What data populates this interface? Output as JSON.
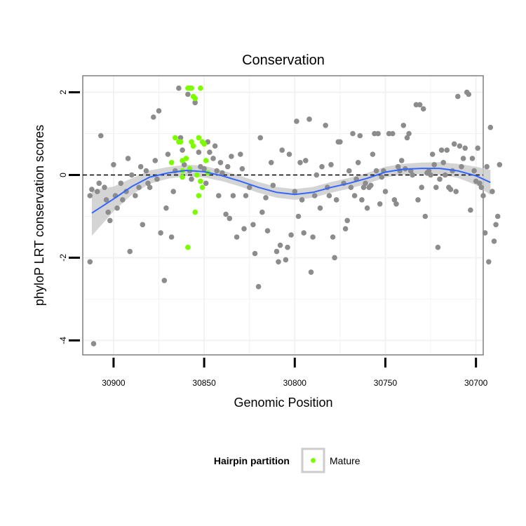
{
  "chart_data": {
    "type": "scatter",
    "title": "Conservation",
    "xlabel": "Genomic Position",
    "ylabel": "phyloP LRT conservation scores",
    "x_reversed": true,
    "xlim": [
      30696,
      30917
    ],
    "ylim": [
      -4.35,
      2.4
    ],
    "x_ticks": [
      30900,
      30850,
      30800,
      30750,
      30700
    ],
    "y_ticks": [
      -4,
      -2,
      0,
      2
    ],
    "reference_line": {
      "y": 0,
      "style": "dashed"
    },
    "grid": true,
    "legend": {
      "title": "Hairpin partition",
      "position": "bottom",
      "entries": [
        "Mature"
      ]
    },
    "colors": {
      "other": "#8c8c8c",
      "mature": "#7cfc00",
      "smooth": "#3366ff",
      "band": "#cccccc",
      "panel_border": "#7f7f7f",
      "grid": "#f2f2f2"
    },
    "series": [
      {
        "name": "",
        "color": "#8c8c8c",
        "points": [
          [
            30907,
            0.95
          ],
          [
            30912,
            -0.35
          ],
          [
            30913,
            -0.5
          ],
          [
            30913,
            -2.1
          ],
          [
            30911,
            -4.08
          ],
          [
            30909,
            -0.4
          ],
          [
            30908,
            -0.2
          ],
          [
            30905,
            -0.3
          ],
          [
            30904,
            -0.6
          ],
          [
            30903,
            -0.9
          ],
          [
            30902,
            -1.1
          ],
          [
            30900,
            0.25
          ],
          [
            30899,
            -0.5
          ],
          [
            30898,
            -0.8
          ],
          [
            30896,
            -0.2
          ],
          [
            30895,
            -0.6
          ],
          [
            30893,
            -0.4
          ],
          [
            30892,
            0.4
          ],
          [
            30891,
            -1.85
          ],
          [
            30890,
            0.0
          ],
          [
            30888,
            -0.5
          ],
          [
            30886,
            -0.3
          ],
          [
            30885,
            0.2
          ],
          [
            30884,
            -1.2
          ],
          [
            30882,
            0.1
          ],
          [
            30881,
            -0.2
          ],
          [
            30880,
            -0.3
          ],
          [
            30878,
            1.4
          ],
          [
            30877,
            0.35
          ],
          [
            30876,
            -0.1
          ],
          [
            30875,
            1.55
          ],
          [
            30874,
            -1.4
          ],
          [
            30872,
            -2.55
          ],
          [
            30871,
            -0.8
          ],
          [
            30870,
            0.5
          ],
          [
            30868,
            -1.5
          ],
          [
            30867,
            -0.4
          ],
          [
            30866,
            0.1
          ],
          [
            30864,
            2.1
          ],
          [
            30863,
            0.9
          ],
          [
            30862,
            0.6
          ],
          [
            30861,
            0.25
          ],
          [
            30859,
            1.95
          ],
          [
            30858,
            0.1
          ],
          [
            30857,
            -0.1
          ],
          [
            30855,
            1.75
          ],
          [
            30853,
            0.55
          ],
          [
            30852,
            0.2
          ],
          [
            30850,
            0.15
          ],
          [
            30849,
            -0.2
          ],
          [
            30848,
            0.8
          ],
          [
            30847,
            0.55
          ],
          [
            30845,
            0.4
          ],
          [
            30844,
            0.7
          ],
          [
            30843,
            0.1
          ],
          [
            30842,
            -0.5
          ],
          [
            30841,
            0.3
          ],
          [
            30840,
            0.05
          ],
          [
            30838,
            -0.95
          ],
          [
            30837,
            0.2
          ],
          [
            30836,
            -1.05
          ],
          [
            30835,
            0.45
          ],
          [
            30834,
            -0.5
          ],
          [
            30832,
            -1.5
          ],
          [
            30830,
            0.5
          ],
          [
            30829,
            0.15
          ],
          [
            30828,
            -1.3
          ],
          [
            30827,
            -0.5
          ],
          [
            30825,
            -0.3
          ],
          [
            30823,
            -1.2
          ],
          [
            30822,
            -1.9
          ],
          [
            30820,
            -2.7
          ],
          [
            30819,
            0.9
          ],
          [
            30818,
            -0.9
          ],
          [
            30816,
            -0.55
          ],
          [
            30815,
            -1.35
          ],
          [
            30813,
            0.3
          ],
          [
            30812,
            -0.25
          ],
          [
            30810,
            -1.85
          ],
          [
            30809,
            -2.1
          ],
          [
            30808,
            -1.7
          ],
          [
            30807,
            0.6
          ],
          [
            30805,
            -2.05
          ],
          [
            30804,
            -1.75
          ],
          [
            30803,
            0.5
          ],
          [
            30802,
            -1.45
          ],
          [
            30800,
            -0.4
          ],
          [
            30799,
            1.3
          ],
          [
            30798,
            -1.0
          ],
          [
            30797,
            0.3
          ],
          [
            30796,
            -0.6
          ],
          [
            30795,
            -1.4
          ],
          [
            30794,
            0.35
          ],
          [
            30792,
            1.35
          ],
          [
            30791,
            -2.35
          ],
          [
            30790,
            -1.5
          ],
          [
            30789,
            -0.5
          ],
          [
            30788,
            0.0
          ],
          [
            30786,
            -0.8
          ],
          [
            30785,
            0.2
          ],
          [
            30783,
            1.2
          ],
          [
            30782,
            -0.3
          ],
          [
            30781,
            -0.5
          ],
          [
            30780,
            0.25
          ],
          [
            30779,
            -1.5
          ],
          [
            30778,
            -2.0
          ],
          [
            30777,
            -0.6
          ],
          [
            30776,
            0.8
          ],
          [
            30775,
            0.8
          ],
          [
            30773,
            -0.2
          ],
          [
            30772,
            -1.3
          ],
          [
            30771,
            -1.1
          ],
          [
            30770,
            0.1
          ],
          [
            30769,
            -0.3
          ],
          [
            30768,
            1.0
          ],
          [
            30767,
            -0.5
          ],
          [
            30766,
            -0.1
          ],
          [
            30765,
            0.3
          ],
          [
            30764,
            0.95
          ],
          [
            30763,
            -0.6
          ],
          [
            30762,
            -0.3
          ],
          [
            30761,
            -0.2
          ],
          [
            30760,
            -0.8
          ],
          [
            30759,
            -0.3
          ],
          [
            30758,
            -0.25
          ],
          [
            30757,
            0.5
          ],
          [
            30756,
            1.0
          ],
          [
            30755,
            0.1
          ],
          [
            30754,
            1.0
          ],
          [
            30753,
            -0.7
          ],
          [
            30752,
            -0.05
          ],
          [
            30751,
            0.1
          ],
          [
            30750,
            -0.4
          ],
          [
            30748,
            1.0
          ],
          [
            30746,
            1.0
          ],
          [
            30745,
            -0.6
          ],
          [
            30744,
            -0.7
          ],
          [
            30743,
            0.2
          ],
          [
            30742,
            0.1
          ],
          [
            30741,
            0.35
          ],
          [
            30740,
            1.2
          ],
          [
            30739,
            0.15
          ],
          [
            30738,
            0.9
          ],
          [
            30737,
            1.0
          ],
          [
            30736,
            0.1
          ],
          [
            30735,
            0.0
          ],
          [
            30733,
            1.7
          ],
          [
            30732,
            -0.6
          ],
          [
            30731,
            1.7
          ],
          [
            30730,
            -0.3
          ],
          [
            30729,
            1.6
          ],
          [
            30728,
            -1.0
          ],
          [
            30727,
            0.05
          ],
          [
            30726,
            0.1
          ],
          [
            30725,
            0.0
          ],
          [
            30724,
            0.5
          ],
          [
            30723,
            0.25
          ],
          [
            30722,
            -0.3
          ],
          [
            30721,
            -1.75
          ],
          [
            30720,
            -0.1
          ],
          [
            30719,
            0.6
          ],
          [
            30718,
            0.3
          ],
          [
            30717,
            0.0
          ],
          [
            30716,
            0.6
          ],
          [
            30715,
            -0.3
          ],
          [
            30714,
            -0.35
          ],
          [
            30713,
            0.1
          ],
          [
            30712,
            0.75
          ],
          [
            30711,
            -0.4
          ],
          [
            30710,
            1.9
          ],
          [
            30709,
            0.7
          ],
          [
            30708,
            0.2
          ],
          [
            30707,
            0.4
          ],
          [
            30706,
            0.65
          ],
          [
            30705,
            2.0
          ],
          [
            30704,
            1.95
          ],
          [
            30703,
            -0.85
          ],
          [
            30702,
            0.4
          ],
          [
            30701,
            0.1
          ],
          [
            30700,
            -0.15
          ],
          [
            30699,
            0.65
          ],
          [
            30698,
            -0.2
          ],
          [
            30697,
            -0.3
          ],
          [
            30696,
            -0.5
          ],
          [
            30695,
            -1.4
          ],
          [
            30694,
            0.2
          ],
          [
            30693,
            -2.1
          ],
          [
            30692,
            1.15
          ],
          [
            30691,
            -0.4
          ],
          [
            30690,
            -1.6
          ],
          [
            30689,
            -1.2
          ],
          [
            30688,
            -1.0
          ],
          [
            30687,
            0.25
          ]
        ]
      },
      {
        "name": "Mature",
        "color": "#7cfc00",
        "points": [
          [
            30863,
            0.8
          ],
          [
            30859,
            2.1
          ],
          [
            30858,
            2.1
          ],
          [
            30857,
            2.1
          ],
          [
            30856,
            1.9
          ],
          [
            30852,
            2.1
          ],
          [
            30855,
            1.85
          ],
          [
            30866,
            0.9
          ],
          [
            30868,
            0.3
          ],
          [
            30862,
            0.35
          ],
          [
            30864,
            0.8
          ],
          [
            30856,
            0.7
          ],
          [
            30857,
            0.8
          ],
          [
            30853,
            0.9
          ],
          [
            30851,
            0.8
          ],
          [
            30850,
            0.75
          ],
          [
            30849,
            0.35
          ],
          [
            30848,
            0.05
          ],
          [
            30862,
            0.1
          ],
          [
            30858,
            0.15
          ],
          [
            30854,
            0.0
          ],
          [
            30852,
            -0.15
          ],
          [
            30851,
            -0.3
          ],
          [
            30855,
            -0.9
          ],
          [
            30859,
            -1.75
          ],
          [
            30862,
            -0.05
          ],
          [
            30860,
            0.4
          ],
          [
            30853,
            -0.5
          ]
        ]
      }
    ],
    "smooth": [
      [
        30912,
        -0.92
      ],
      [
        30900,
        -0.58
      ],
      [
        30890,
        -0.28
      ],
      [
        30880,
        -0.05
      ],
      [
        30870,
        0.05
      ],
      [
        30860,
        0.11
      ],
      [
        30850,
        0.08
      ],
      [
        30840,
        -0.02
      ],
      [
        30830,
        -0.15
      ],
      [
        30820,
        -0.3
      ],
      [
        30810,
        -0.42
      ],
      [
        30800,
        -0.47
      ],
      [
        30790,
        -0.42
      ],
      [
        30780,
        -0.3
      ],
      [
        30770,
        -0.2
      ],
      [
        30760,
        -0.08
      ],
      [
        30750,
        0.07
      ],
      [
        30740,
        0.14
      ],
      [
        30730,
        0.16
      ],
      [
        30720,
        0.16
      ],
      [
        30710,
        0.1
      ],
      [
        30700,
        -0.02
      ],
      [
        30692,
        -0.18
      ]
    ],
    "band_halfwidth": [
      0.55,
      0.3,
      0.2,
      0.16,
      0.14,
      0.14,
      0.14,
      0.13,
      0.13,
      0.13,
      0.13,
      0.13,
      0.13,
      0.13,
      0.13,
      0.13,
      0.13,
      0.13,
      0.14,
      0.15,
      0.17,
      0.22,
      0.3
    ]
  }
}
